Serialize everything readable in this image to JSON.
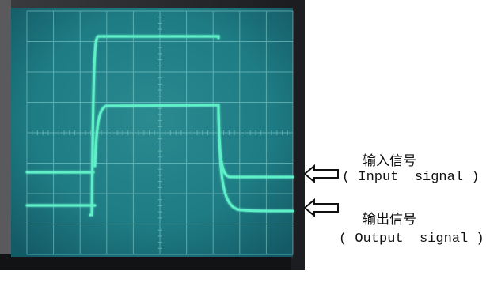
{
  "labels": {
    "input_cn": "输入信号",
    "input_en": "( Input  signal )",
    "output_cn": "输出信号",
    "output_en": "( Output  signal )"
  },
  "colors": {
    "trace": "#5ef0c8",
    "screen": "#1e7c84",
    "bezel": "#24262a",
    "graticule": "#8fd6d2"
  },
  "icons": [
    "arrow-input-icon",
    "arrow-output-icon"
  ]
}
